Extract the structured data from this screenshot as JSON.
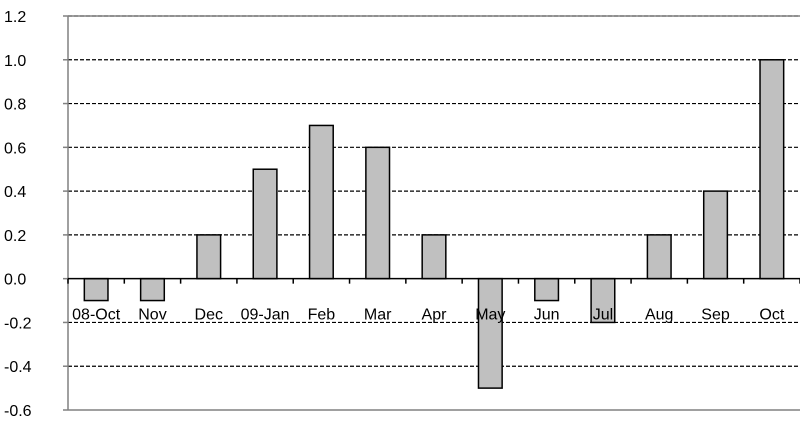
{
  "chart_data": {
    "type": "bar",
    "categories": [
      "08-Oct",
      "Nov",
      "Dec",
      "09-Jan",
      "Feb",
      "Mar",
      "Apr",
      "May",
      "Jun",
      "Jul",
      "Aug",
      "Sep",
      "Oct"
    ],
    "values": [
      -0.1,
      -0.1,
      0.2,
      0.5,
      0.7,
      0.6,
      0.2,
      -0.5,
      -0.1,
      -0.2,
      0.2,
      0.4,
      1.0
    ],
    "yticks": [
      "1.2",
      "1.0",
      "0.8",
      "0.6",
      "0.4",
      "0.2",
      "0.0",
      "-0.2",
      "-0.4",
      "-0.6"
    ],
    "ylim": [
      -0.6,
      1.2
    ],
    "grid": "horizontal dashed",
    "bar_color": "#c0c0c0",
    "bar_edge_color": "#000000"
  }
}
